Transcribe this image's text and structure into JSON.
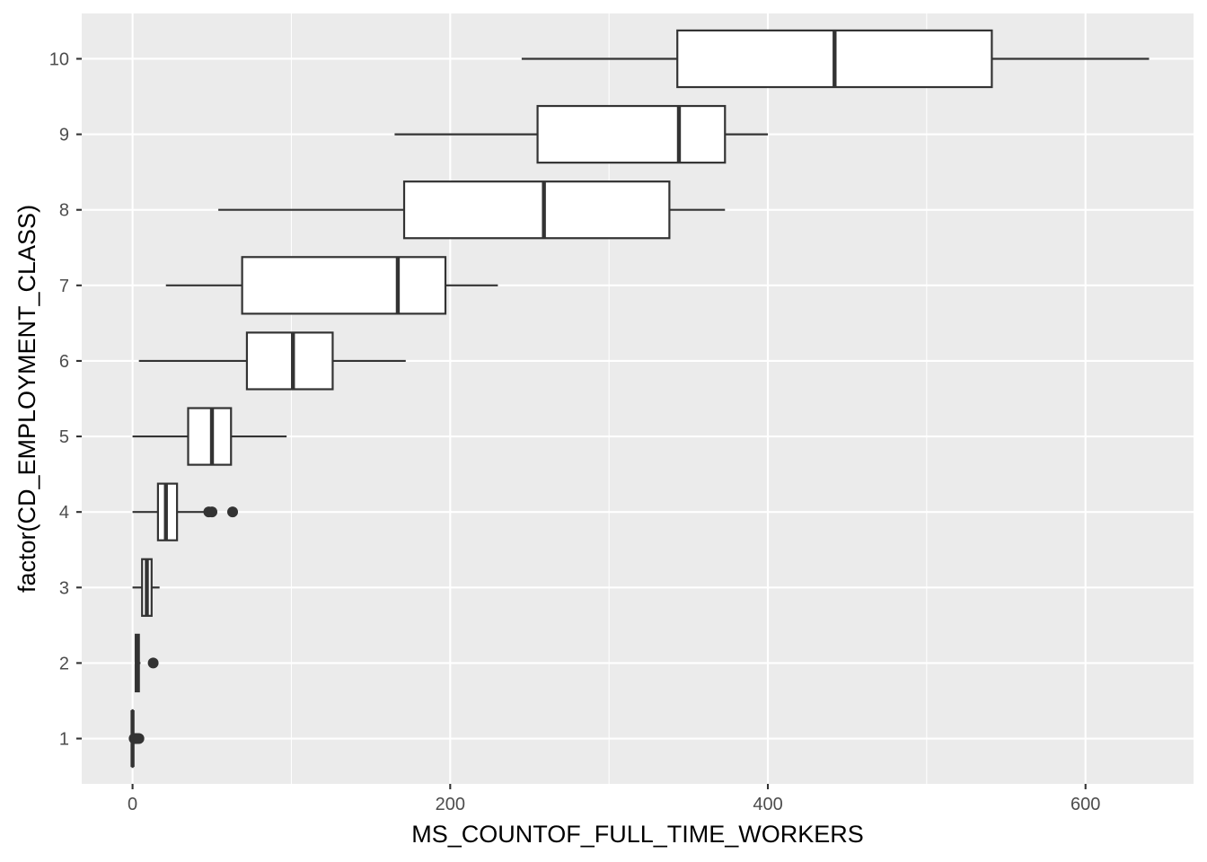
{
  "chart_data": {
    "type": "boxplot",
    "orientation": "horizontal",
    "xlabel": "MS_COUNTOF_FULL_TIME_WORKERS",
    "ylabel": "factor(CD_EMPLOYMENT_CLASS)",
    "xlim": [
      -32,
      668
    ],
    "xticks": [
      0,
      200,
      400,
      600
    ],
    "xtick_labels": [
      "0",
      "200",
      "400",
      "600"
    ],
    "categories": [
      "1",
      "2",
      "3",
      "4",
      "5",
      "6",
      "7",
      "8",
      "9",
      "10"
    ],
    "boxes": [
      {
        "category": "1",
        "min": 0,
        "q1": 0,
        "median": 0,
        "q3": 0,
        "max": 0,
        "outliers": [
          1,
          2,
          3,
          4
        ]
      },
      {
        "category": "2",
        "min": 2,
        "q1": 2,
        "median": 3,
        "q3": 4,
        "max": 5,
        "outliers": [
          13
        ]
      },
      {
        "category": "3",
        "min": 0,
        "q1": 6,
        "median": 9,
        "q3": 12,
        "max": 17,
        "outliers": []
      },
      {
        "category": "4",
        "min": 0,
        "q1": 16,
        "median": 21,
        "q3": 28,
        "max": 45,
        "outliers": [
          48,
          50,
          63
        ]
      },
      {
        "category": "5",
        "min": 0,
        "q1": 35,
        "median": 50,
        "q3": 62,
        "max": 97,
        "outliers": []
      },
      {
        "category": "6",
        "min": 4,
        "q1": 72,
        "median": 101,
        "q3": 126,
        "max": 172,
        "outliers": []
      },
      {
        "category": "7",
        "min": 21,
        "q1": 69,
        "median": 167,
        "q3": 197,
        "max": 230,
        "outliers": []
      },
      {
        "category": "8",
        "min": 54,
        "q1": 171,
        "median": 259,
        "q3": 338,
        "max": 373,
        "outliers": []
      },
      {
        "category": "9",
        "min": 165,
        "q1": 255,
        "median": 344,
        "q3": 373,
        "max": 400,
        "outliers": []
      },
      {
        "category": "10",
        "min": 245,
        "q1": 343,
        "median": 442,
        "q3": 541,
        "max": 640,
        "outliers": []
      }
    ],
    "colors": {
      "panel": "#ebebeb",
      "grid": "#ffffff",
      "box_fill": "#ffffff",
      "box_line": "#333333",
      "tick_text": "#4d4d4d",
      "title_text": "#000000"
    }
  }
}
